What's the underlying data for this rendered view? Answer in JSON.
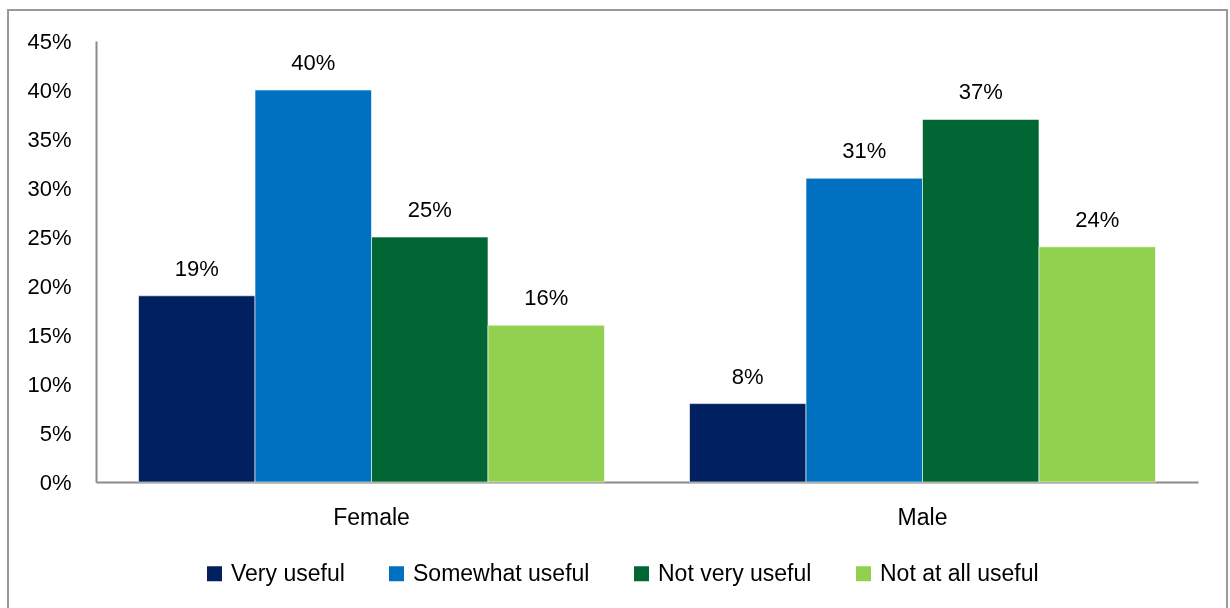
{
  "chart_data": {
    "type": "bar",
    "categories": [
      "Female",
      "Male"
    ],
    "series": [
      {
        "name": "Very useful",
        "color": "#002060",
        "values": [
          19,
          8
        ],
        "value_labels": [
          "19%",
          "8%"
        ]
      },
      {
        "name": "Somewhat useful",
        "color": "#0070c0",
        "values": [
          40,
          31
        ],
        "value_labels": [
          "40%",
          "31%"
        ]
      },
      {
        "name": "Not very useful",
        "color": "#006633",
        "values": [
          25,
          37
        ],
        "value_labels": [
          "25%",
          "37%"
        ]
      },
      {
        "name": "Not at all useful",
        "color": "#92d050",
        "values": [
          16,
          24
        ],
        "value_labels": [
          "16%",
          "24%"
        ]
      }
    ],
    "ylim": [
      0,
      45
    ],
    "yticks": [
      {
        "value": 0,
        "label": "0%"
      },
      {
        "value": 5,
        "label": "5%"
      },
      {
        "value": 10,
        "label": "10%"
      },
      {
        "value": 15,
        "label": "15%"
      },
      {
        "value": 20,
        "label": "20%"
      },
      {
        "value": 25,
        "label": "25%"
      },
      {
        "value": 30,
        "label": "30%"
      },
      {
        "value": 35,
        "label": "35%"
      },
      {
        "value": 40,
        "label": "40%"
      },
      {
        "value": 45,
        "label": "45%"
      }
    ],
    "legend": "bottom"
  }
}
